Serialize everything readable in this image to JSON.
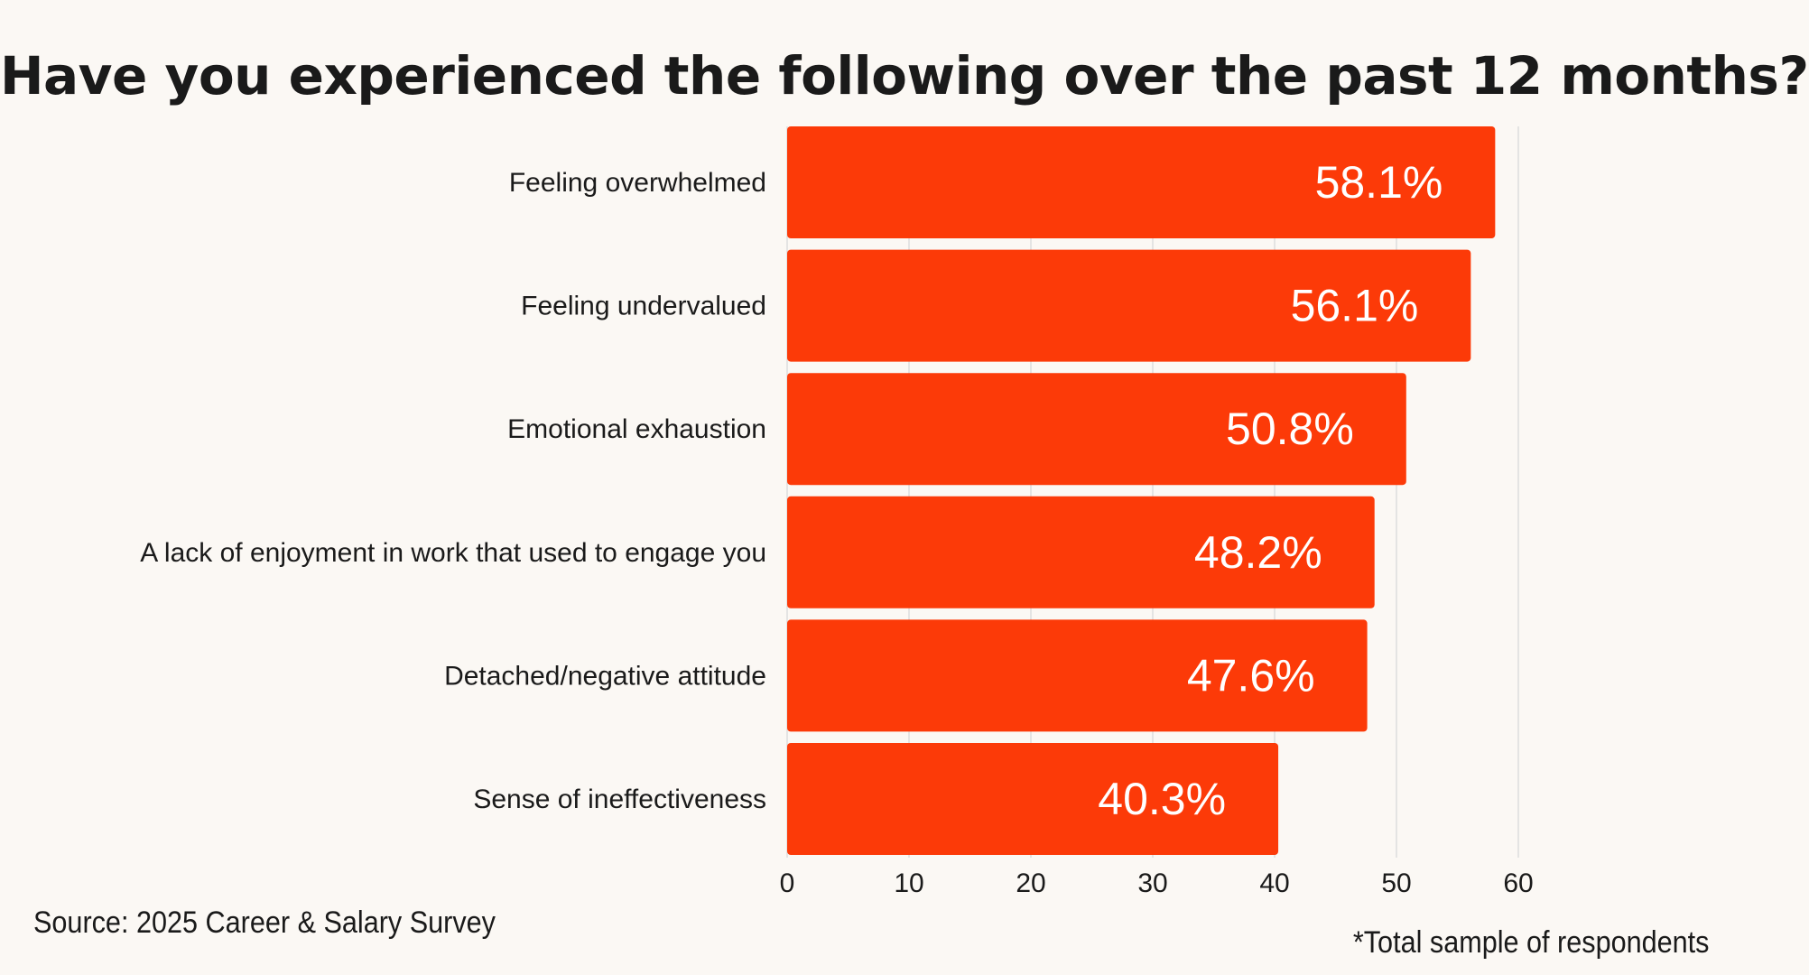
{
  "chart_data": {
    "type": "bar",
    "orientation": "horizontal",
    "title": "Have you experienced the following over the past 12 months?",
    "categories": [
      "Feeling overwhelmed",
      "Feeling undervalued",
      "Emotional exhaustion",
      "A lack of enjoyment in work that used to engage you",
      "Detached/negative attitude",
      "Sense of ineffectiveness"
    ],
    "values": [
      58.1,
      56.1,
      50.8,
      48.2,
      47.6,
      40.3
    ],
    "value_labels": [
      "58.1%",
      "56.1%",
      "50.8%",
      "48.2%",
      "47.6%",
      "40.3%"
    ],
    "xlim": [
      0,
      60
    ],
    "xticks": [
      0,
      10,
      20,
      30,
      40,
      50,
      60
    ],
    "grid": "vertical",
    "colors": {
      "bar": "#fc3a08",
      "bar_label": "#ffffff",
      "grid": "#dddddd",
      "background": "#fbf8f4",
      "text": "#1a1a1a"
    }
  },
  "footer": {
    "source": "Source: 2025 Career & Salary Survey",
    "note": "*Total sample of respondents"
  }
}
